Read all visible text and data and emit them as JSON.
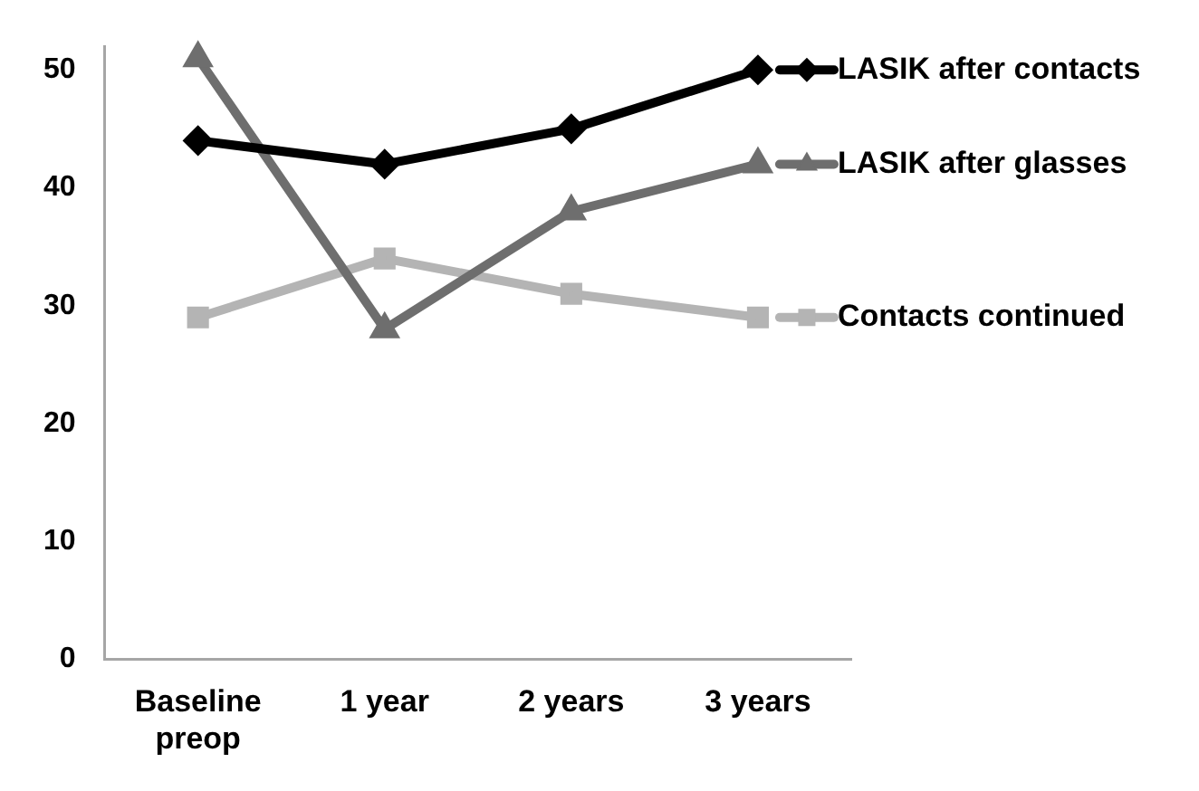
{
  "chart_data": {
    "type": "line",
    "categories": [
      "Baseline preop",
      "1 year",
      "2 years",
      "3 years"
    ],
    "series": [
      {
        "name": "LASIK after contacts",
        "color": "#000000",
        "marker": "diamond",
        "values": [
          44,
          42,
          45,
          50
        ]
      },
      {
        "name": "LASIK after glasses",
        "color": "#6e6e6e",
        "marker": "triangle",
        "values": [
          51,
          28,
          38,
          42
        ]
      },
      {
        "name": "Contacts continued",
        "color": "#b4b4b4",
        "marker": "square",
        "values": [
          29,
          34,
          31,
          29
        ]
      }
    ],
    "ylim": [
      0,
      52
    ],
    "yticks": [
      0,
      10,
      20,
      30,
      40,
      50
    ],
    "grid": false,
    "legend": "right",
    "line_style": "solid"
  }
}
